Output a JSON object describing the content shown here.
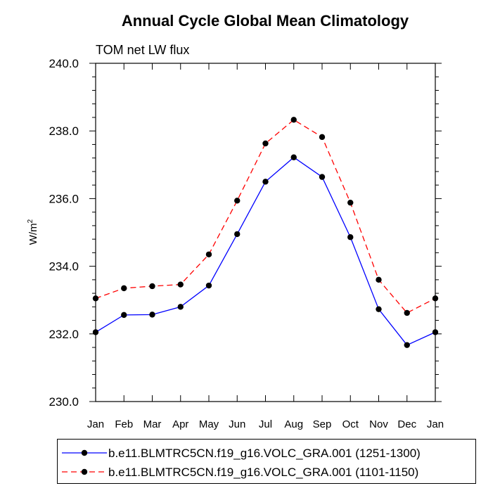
{
  "chart_data": {
    "type": "line",
    "title": "Annual Cycle Global Mean Climatology",
    "subtitle": "TOM net LW flux",
    "ylabel_base": "W/m",
    "ylabel_sup": "2",
    "xlabel": "",
    "categories": [
      "Jan",
      "Feb",
      "Mar",
      "Apr",
      "May",
      "Jun",
      "Jul",
      "Aug",
      "Sep",
      "Oct",
      "Nov",
      "Dec",
      "Jan"
    ],
    "ylim": [
      230.0,
      240.0
    ],
    "yticks": [
      "230.0",
      "232.0",
      "234.0",
      "236.0",
      "238.0",
      "240.0"
    ],
    "grid": false,
    "legend_position": "bottom",
    "series": [
      {
        "name": "b.e11.BLMTRC5CN.f19_g16.VOLC_GRA.001 (1251-1300)",
        "color": "#0000ff",
        "dash": "solid",
        "values": [
          232.05,
          232.56,
          232.57,
          232.8,
          233.43,
          234.95,
          236.5,
          237.22,
          236.64,
          234.86,
          232.73,
          231.67,
          232.05
        ]
      },
      {
        "name": "b.e11.BLMTRC5CN.f19_g16.VOLC_GRA.001 (1101-1150)",
        "color": "#ff0000",
        "dash": "dashed",
        "values": [
          233.05,
          233.35,
          233.41,
          233.46,
          234.35,
          235.94,
          237.63,
          238.33,
          237.82,
          235.88,
          233.6,
          232.62,
          233.05
        ]
      }
    ]
  }
}
